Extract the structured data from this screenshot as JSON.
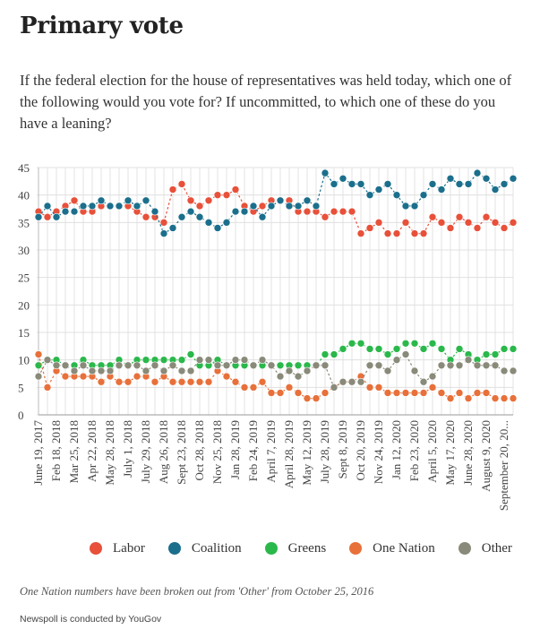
{
  "header": {
    "title": "Primary vote",
    "question": "If the federal election for the house of representatives was held today, which one of the following would you vote for? If uncommitted, to which one of these do you have a leaning?"
  },
  "colors": {
    "labor": "#e8503a",
    "coalition": "#1b6f8c",
    "greens": "#2ab84a",
    "one_nation": "#e8703a",
    "other": "#8a8a7a"
  },
  "chart_data": {
    "type": "line",
    "title": "Primary vote",
    "xlabel": "",
    "ylabel": "",
    "ylim": [
      0,
      45
    ],
    "yticks": [
      0,
      5,
      10,
      15,
      20,
      25,
      30,
      35,
      40,
      45
    ],
    "grid": true,
    "legend_position": "bottom",
    "x_labels": [
      "June 19, 2017",
      "Feb 18, 2018",
      "Mar 25, 2018",
      "Apr 22, 2018",
      "May 28, 2018",
      "July 1, 2018",
      "July 29, 2018",
      "Aug 26, 2018",
      "Sept 23, 2018",
      "Oct 28, 2018",
      "Nov 25, 2018",
      "Jan 28, 2019",
      "Feb 24, 2019",
      "April 7, 2019",
      "April 28, 2019",
      "May 12, 2019",
      "July 28, 2019",
      "Sept 8, 2019",
      "Oct 20, 2019",
      "Nov 24, 2019",
      "Jan 12, 2020",
      "Feb 23, 2020",
      "April 5, 2020",
      "May 17, 2020",
      "June 28, 2020",
      "August 9, 2020",
      "September 20, 20..."
    ],
    "x_label_index_step": 2,
    "n_points": 54,
    "series": [
      {
        "name": "Labor",
        "key": "labor",
        "values": [
          37,
          36,
          37,
          38,
          39,
          37,
          37,
          38,
          38,
          38,
          38,
          37,
          36,
          36,
          35,
          41,
          42,
          39,
          38,
          39,
          40,
          40,
          41,
          38,
          37,
          38,
          39,
          39,
          39,
          37,
          37,
          37,
          36,
          37,
          37,
          37,
          33,
          34,
          35,
          33,
          33,
          35,
          33,
          33,
          36,
          35,
          34,
          36,
          35,
          34,
          36,
          35,
          34,
          35
        ]
      },
      {
        "name": "Coalition",
        "key": "coalition",
        "values": [
          36,
          38,
          36,
          37,
          37,
          38,
          38,
          39,
          38,
          38,
          39,
          38,
          39,
          37,
          33,
          34,
          36,
          37,
          36,
          35,
          34,
          35,
          37,
          37,
          38,
          36,
          38,
          39,
          38,
          38,
          39,
          38,
          44,
          42,
          43,
          42,
          42,
          40,
          41,
          42,
          40,
          38,
          38,
          40,
          42,
          41,
          43,
          42,
          42,
          44,
          43,
          41,
          42,
          43
        ]
      },
      {
        "name": "Greens",
        "key": "greens",
        "values": [
          9,
          10,
          10,
          9,
          9,
          10,
          9,
          9,
          9,
          10,
          9,
          10,
          10,
          10,
          10,
          10,
          10,
          11,
          9,
          9,
          10,
          9,
          9,
          9,
          9,
          9,
          9,
          9,
          9,
          9,
          9,
          9,
          11,
          11,
          12,
          13,
          13,
          12,
          12,
          11,
          12,
          13,
          13,
          12,
          13,
          12,
          10,
          12,
          11,
          10,
          11,
          11,
          12,
          12
        ]
      },
      {
        "name": "One Nation",
        "key": "one_nation",
        "values": [
          11,
          5,
          8,
          7,
          7,
          7,
          7,
          6,
          7,
          6,
          6,
          7,
          7,
          6,
          7,
          6,
          6,
          6,
          6,
          6,
          8,
          7,
          6,
          5,
          5,
          6,
          4,
          4,
          5,
          4,
          3,
          3,
          4,
          5,
          6,
          6,
          7,
          5,
          5,
          4,
          4,
          4,
          4,
          4,
          5,
          4,
          3,
          4,
          3,
          4,
          4,
          3,
          3,
          3
        ]
      },
      {
        "name": "Other",
        "key": "other",
        "values": [
          7,
          10,
          9,
          9,
          8,
          9,
          8,
          8,
          8,
          9,
          9,
          9,
          8,
          9,
          8,
          9,
          8,
          8,
          10,
          10,
          9,
          9,
          10,
          10,
          9,
          10,
          9,
          7,
          8,
          7,
          8,
          9,
          9,
          5,
          6,
          6,
          6,
          9,
          9,
          8,
          10,
          11,
          8,
          6,
          7,
          9,
          9,
          9,
          10,
          9,
          9,
          9,
          8,
          8
        ]
      }
    ]
  },
  "legend": {
    "items": [
      {
        "label": "Labor",
        "color": "#e8503a"
      },
      {
        "label": "Coalition",
        "color": "#1b6f8c"
      },
      {
        "label": "Greens",
        "color": "#2ab84a"
      },
      {
        "label": "One Nation",
        "color": "#e8703a"
      },
      {
        "label": "Other",
        "color": "#8a8a7a"
      }
    ]
  },
  "footer": {
    "note": "One Nation numbers have been broken out from 'Other' from October 25, 2016",
    "source": "Newspoll is conducted by YouGov"
  }
}
